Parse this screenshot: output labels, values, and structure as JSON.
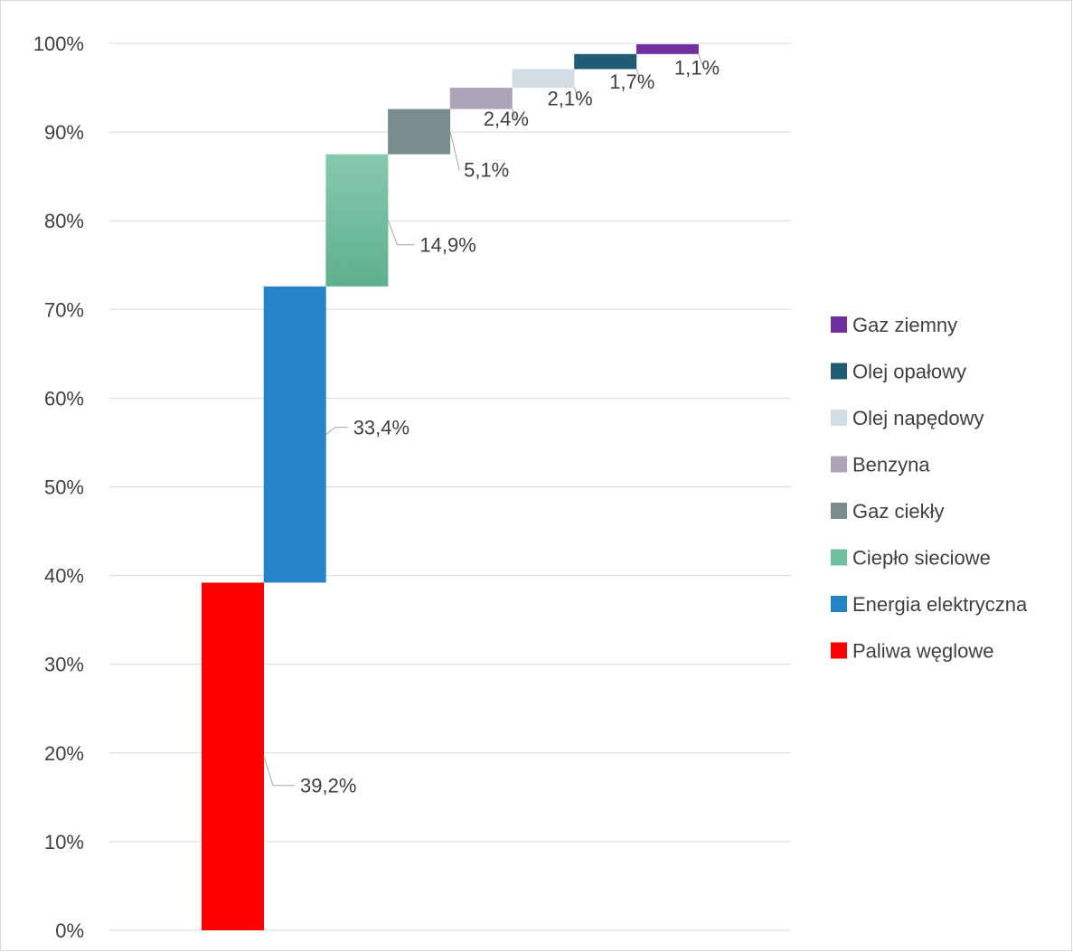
{
  "chart_data": {
    "type": "bar",
    "subtype": "stacked-waterfall",
    "title": "",
    "xlabel": "",
    "ylabel": "",
    "ylim": [
      0,
      100
    ],
    "y_ticks": [
      "0%",
      "10%",
      "20%",
      "30%",
      "40%",
      "50%",
      "60%",
      "70%",
      "80%",
      "90%",
      "100%"
    ],
    "grid": true,
    "legend_position": "right",
    "series": [
      {
        "name": "Paliwa węglowe",
        "value": 39.2,
        "label": "39,2%",
        "color": "#ff0000"
      },
      {
        "name": "Energia elektryczna",
        "value": 33.4,
        "label": "33,4%",
        "color": "#2583c8"
      },
      {
        "name": "Ciepło sieciowe",
        "value": 14.9,
        "label": "14,9%",
        "color": "#6fbe9e"
      },
      {
        "name": "Gaz ciekły",
        "value": 5.1,
        "label": "5,1%",
        "color": "#7b8c8c"
      },
      {
        "name": "Benzyna",
        "value": 2.4,
        "label": "2,4%",
        "color": "#aaa5b8"
      },
      {
        "name": "Olej napędowy",
        "value": 2.1,
        "label": "2,1%",
        "color": "#d3dde6"
      },
      {
        "name": "Olej opałowy",
        "value": 1.7,
        "label": "1,7%",
        "color": "#1f5c73"
      },
      {
        "name": "Gaz ziemny",
        "value": 1.1,
        "label": "1,1%",
        "color": "#7030a0"
      }
    ]
  }
}
